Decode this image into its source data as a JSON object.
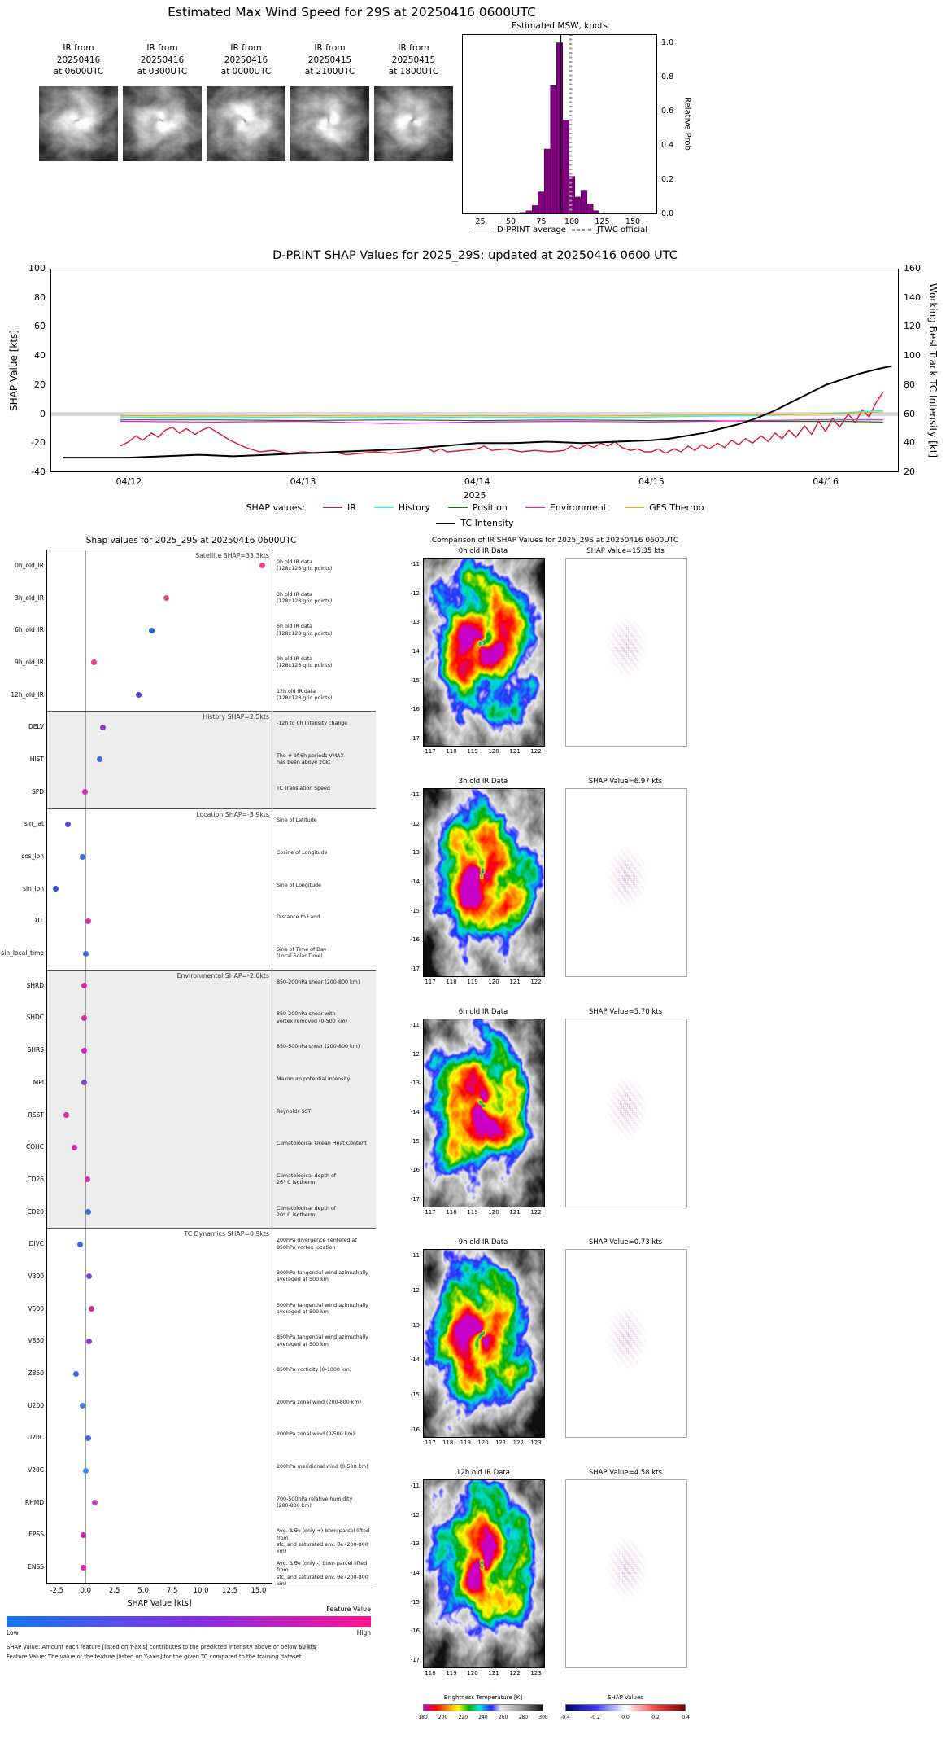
{
  "top": {
    "title": "Estimated Max Wind Speed for 29S at 20250416 0600UTC",
    "thumbs": [
      {
        "label_lines": [
          "IR from",
          "20250416",
          "at 0600UTC"
        ]
      },
      {
        "label_lines": [
          "IR from",
          "20250416",
          "at 0300UTC"
        ]
      },
      {
        "label_lines": [
          "IR from",
          "20250416",
          "at 0000UTC"
        ]
      },
      {
        "label_lines": [
          "IR from",
          "20250415",
          "at 2100UTC"
        ]
      },
      {
        "label_lines": [
          "IR from",
          "20250415",
          "at 1800UTC"
        ]
      }
    ]
  },
  "chart_data": [
    {
      "id": "msw_histogram",
      "type": "bar",
      "title": "Estimated MSW, knots",
      "ylabel": "Relative Prob",
      "xlim": [
        10,
        170
      ],
      "ylim": [
        0,
        1.05
      ],
      "xticks": [
        "25",
        "50",
        "75",
        "100",
        "125",
        "150"
      ],
      "yticks": [
        "0.0",
        "0.2",
        "0.4",
        "0.6",
        "0.8",
        "1.0"
      ],
      "bin_width": 5,
      "bin_centers": [
        60,
        65,
        70,
        75,
        80,
        85,
        90,
        95,
        100,
        105,
        110,
        115,
        120
      ],
      "values": [
        0.01,
        0.02,
        0.05,
        0.13,
        0.38,
        0.75,
        1.0,
        0.55,
        0.22,
        0.1,
        0.14,
        0.06,
        0.02
      ],
      "bar_color": "#800080",
      "dprint_average": 91,
      "jtwc_official": 99,
      "legend": [
        {
          "label": "D-PRINT average",
          "style": "solid",
          "color": "#000000"
        },
        {
          "label": "JTWC official",
          "style": "dotted",
          "color": "#999999"
        }
      ]
    },
    {
      "id": "shap_timeseries",
      "type": "line",
      "title": "D-PRINT SHAP Values for 2025_29S: updated at 20250416 0600 UTC",
      "ylabel_left": "SHAP Value [kts]",
      "ylabel_right": "Working Best Track TC Intensity [kt]",
      "xlabel": "2025",
      "legend_label": "SHAP values:",
      "ylim_left": [
        -40,
        100
      ],
      "ylim_right": [
        20,
        160
      ],
      "xlim_days": [
        11.55,
        16.42
      ],
      "yticks_left": [
        "-40",
        "-20",
        "0",
        "20",
        "40",
        "60",
        "80",
        "100"
      ],
      "yticks_right": [
        "20",
        "40",
        "60",
        "80",
        "100",
        "120",
        "140",
        "160"
      ],
      "xticks": [
        {
          "day": 12,
          "label": "04/12"
        },
        {
          "day": 13,
          "label": "04/13"
        },
        {
          "day": 14,
          "label": "04/14"
        },
        {
          "day": 15,
          "label": "04/15"
        },
        {
          "day": 16,
          "label": "04/16"
        }
      ],
      "series": [
        {
          "name": "IR",
          "color": "crimson",
          "axis": "left",
          "x": [
            11.95,
            12.0,
            12.04,
            12.08,
            12.13,
            12.17,
            12.21,
            12.25,
            12.29,
            12.33,
            12.38,
            12.42,
            12.46,
            12.5,
            12.58,
            12.67,
            12.75,
            12.83,
            12.92,
            13.0,
            13.08,
            13.17,
            13.25,
            13.33,
            13.42,
            13.5,
            13.58,
            13.67,
            13.71,
            13.75,
            13.79,
            13.83,
            13.92,
            14.0,
            14.04,
            14.08,
            14.17,
            14.25,
            14.33,
            14.42,
            14.5,
            14.54,
            14.58,
            14.63,
            14.67,
            14.71,
            14.75,
            14.79,
            14.83,
            14.88,
            14.92,
            14.96,
            15.0,
            15.04,
            15.08,
            15.13,
            15.17,
            15.21,
            15.25,
            15.29,
            15.33,
            15.38,
            15.42,
            15.46,
            15.5,
            15.54,
            15.58,
            15.63,
            15.67,
            15.71,
            15.75,
            15.79,
            15.83,
            15.88,
            15.92,
            15.96,
            16.0,
            16.04,
            16.08,
            16.13,
            16.17,
            16.21,
            16.25,
            16.29,
            16.33
          ],
          "y": [
            -22,
            -19,
            -15,
            -18,
            -13,
            -16,
            -11,
            -9,
            -13,
            -10,
            -14,
            -11,
            -9,
            -12,
            -18,
            -23,
            -26,
            -25,
            -27,
            -26,
            -27,
            -26,
            -28,
            -27,
            -26,
            -27,
            -26,
            -25,
            -23,
            -26,
            -24,
            -26,
            -25,
            -24,
            -22,
            -25,
            -24,
            -26,
            -25,
            -26,
            -25,
            -22,
            -24,
            -21,
            -23,
            -20,
            -22,
            -19,
            -23,
            -25,
            -24,
            -26,
            -26,
            -24,
            -27,
            -24,
            -26,
            -22,
            -25,
            -21,
            -24,
            -20,
            -23,
            -18,
            -21,
            -17,
            -20,
            -15,
            -19,
            -13,
            -17,
            -11,
            -16,
            -8,
            -14,
            -5,
            -12,
            -3,
            -9,
            0,
            -6,
            3,
            -2,
            8,
            15
          ]
        },
        {
          "name": "History",
          "color": "cyan",
          "axis": "left",
          "x": [
            11.95,
            12.5,
            13.0,
            13.5,
            14.0,
            14.5,
            15.0,
            15.3,
            15.6,
            15.9,
            16.1,
            16.33
          ],
          "y": [
            -2,
            -2.5,
            -2,
            -2.5,
            -2,
            -2.5,
            -2,
            -1.5,
            -1,
            0,
            1,
            2.5
          ]
        },
        {
          "name": "Position",
          "color": "green",
          "axis": "left",
          "x": [
            11.95,
            12.5,
            13.0,
            13.5,
            14.0,
            14.5,
            15.0,
            15.3,
            15.6,
            15.9,
            16.1,
            16.33
          ],
          "y": [
            -4,
            -4,
            -4.5,
            -4,
            -4.5,
            -4,
            -4.5,
            -4.5,
            -5,
            -5,
            -5,
            -5.5
          ]
        },
        {
          "name": "Environment",
          "color": "magenta",
          "axis": "left",
          "x": [
            11.95,
            12.5,
            13.0,
            13.5,
            14.0,
            14.5,
            15.0,
            15.3,
            15.6,
            15.9,
            16.1,
            16.33
          ],
          "y": [
            -5,
            -5.5,
            -5,
            -6.5,
            -5.5,
            -5,
            -5.5,
            -5,
            -4.5,
            -4,
            -4,
            -4
          ]
        },
        {
          "name": "GFS Thermo",
          "color": "orange",
          "axis": "left",
          "x": [
            11.95,
            12.5,
            13.0,
            13.5,
            14.0,
            14.5,
            15.0,
            15.3,
            15.6,
            15.9,
            16.1,
            16.33
          ],
          "y": [
            -1,
            -1.5,
            -1,
            -1.5,
            -1,
            -1.5,
            -1,
            -0.5,
            -0.5,
            0,
            0.5,
            1.5
          ]
        },
        {
          "name": "TC Intensity",
          "color": "black",
          "axis": "right",
          "x": [
            11.62,
            11.8,
            12.0,
            12.2,
            12.4,
            12.6,
            12.8,
            13.0,
            13.2,
            13.4,
            13.6,
            13.8,
            14.0,
            14.2,
            14.4,
            14.6,
            14.8,
            15.0,
            15.1,
            15.2,
            15.3,
            15.4,
            15.5,
            15.6,
            15.7,
            15.8,
            15.9,
            16.0,
            16.1,
            16.2,
            16.3,
            16.38
          ],
          "y": [
            30,
            30,
            30,
            31,
            32,
            31,
            32,
            33,
            34,
            35,
            36,
            38,
            40,
            40,
            41,
            40,
            41,
            42,
            43,
            45,
            47,
            50,
            53,
            57,
            62,
            68,
            74,
            80,
            84,
            88,
            91,
            93
          ]
        }
      ]
    },
    {
      "id": "feature_shap_dotplot",
      "type": "scatter",
      "title": "Shap values for 2025_29S at 20250416 0600UTC",
      "xlabel": "SHAP Value [kts]",
      "xlim": [
        -3.4,
        16.2
      ],
      "xticks": [
        "-2.5",
        "0.0",
        "2.5",
        "5.0",
        "7.5",
        "10.0",
        "12.5",
        "15.0"
      ],
      "colorbar": {
        "label": "Feature Value",
        "low": "Low",
        "high": "High"
      },
      "footnote1_prefix": "SHAP Value: Amount each feature [listed on Y-axis] contributes to the predicted intensity above or below ",
      "footnote1_highlight": "60 kts",
      "footnote2": "Feature Value: The value of the feature [listed on Y-axis] for the given TC compared to the training dataset",
      "groups": [
        {
          "header": "Satellite SHAP=33.3kts",
          "shaded": false,
          "features": [
            {
              "name": "0h_old_IR",
              "value": 15.35,
              "color": "#f03a8c",
              "desc": "0h old IR data\n(128x128 grid points)"
            },
            {
              "name": "3h_old_IR",
              "value": 6.97,
              "color": "#e8467c",
              "desc": "3h old IR data\n(128x128 grid points)"
            },
            {
              "name": "6h_old_IR",
              "value": 5.7,
              "color": "#2b5bd7",
              "desc": "6h old IR data\n(128x128 grid points)"
            },
            {
              "name": "9h_old_IR",
              "value": 0.73,
              "color": "#ee3d86",
              "desc": "9h old IR data\n(128x128 grid points)"
            },
            {
              "name": "12h_old_IR",
              "value": 4.58,
              "color": "#4a4ad0",
              "desc": "12h old IR data\n(128x128 grid points)"
            }
          ]
        },
        {
          "header": "History SHAP=2.5kts",
          "shaded": true,
          "features": [
            {
              "name": "DELV",
              "value": 1.5,
              "color": "#8a3bd0",
              "desc": "-12h to 0h Intensity change"
            },
            {
              "name": "HIST",
              "value": 1.2,
              "color": "#3b6bdc",
              "desc": "The # of 6h periods VMAX\nhas been above 20kt"
            },
            {
              "name": "SPD",
              "value": -0.05,
              "color": "#d62ba8",
              "desc": "TC Translation Speed"
            }
          ]
        },
        {
          "header": "Location SHAP=-3.9kts",
          "shaded": false,
          "features": [
            {
              "name": "sin_lat",
              "value": -1.5,
              "color": "#5a4ad0",
              "desc": "Sine of Latitude"
            },
            {
              "name": "cos_lon",
              "value": -0.25,
              "color": "#3b6bdc",
              "desc": "Cosine of Longitude"
            },
            {
              "name": "sin_lon",
              "value": -2.6,
              "color": "#2b5bd7",
              "desc": "Sine of Longitude"
            },
            {
              "name": "DTL",
              "value": 0.2,
              "color": "#d62ba8",
              "desc": "Distance to Land"
            },
            {
              "name": "sin_local_time",
              "value": 0.0,
              "color": "#3b6bdc",
              "desc": "Sine of Time of Day\n(Local Solar Time)"
            }
          ]
        },
        {
          "header": "Environmental SHAP=-2.0kts",
          "shaded": true,
          "features": [
            {
              "name": "SHRD",
              "value": -0.1,
              "color": "#d62ba8",
              "desc": "850-200hPa shear (200-800 km)"
            },
            {
              "name": "SHDC",
              "value": -0.1,
              "color": "#d62ba8",
              "desc": "850-200hPa shear with\nvortex removed (0-500 km)"
            },
            {
              "name": "SHRS",
              "value": -0.1,
              "color": "#c72bbf",
              "desc": "850-500hPa shear (200-800 km)"
            },
            {
              "name": "MPI",
              "value": -0.1,
              "color": "#7a4ad0",
              "desc": "Maximum potential intensity"
            },
            {
              "name": "RSST",
              "value": -1.7,
              "color": "#d62ba8",
              "desc": "Reynolds SST"
            },
            {
              "name": "COHC",
              "value": -1.0,
              "color": "#d62ba8",
              "desc": "Climatological Ocean Heat Content"
            },
            {
              "name": "CD26",
              "value": 0.15,
              "color": "#d62ba8",
              "desc": "Climatological depth of\n26° C isotherm"
            },
            {
              "name": "CD20",
              "value": 0.2,
              "color": "#3b6bdc",
              "desc": "Climatological depth of\n20° C isotherm"
            }
          ]
        },
        {
          "header": "TC Dynamics SHAP=0.9kts",
          "shaded": false,
          "features": [
            {
              "name": "DIVC",
              "value": -0.5,
              "color": "#3b6bdc",
              "desc": "200hPa divergence centered at\n850hPa vortex location"
            },
            {
              "name": "V300",
              "value": 0.3,
              "color": "#7a4ad0",
              "desc": "300hPa tangential wind azimuthally\naveraged at 500 km"
            },
            {
              "name": "V500",
              "value": 0.5,
              "color": "#d62b8c",
              "desc": "500hPa tangential wind azimuthally\naveraged at 500 km"
            },
            {
              "name": "V850",
              "value": 0.3,
              "color": "#8a3bd0",
              "desc": "850hPa tangential wind azimuthally\naveraged at 500 km"
            },
            {
              "name": "Z850",
              "value": -0.8,
              "color": "#3b6bdc",
              "desc": "850hPa vorticity (0-1000 km)"
            },
            {
              "name": "U200",
              "value": -0.25,
              "color": "#4a7ae0",
              "desc": "200hPa zonal wind (200-800 km)"
            },
            {
              "name": "U20C",
              "value": 0.2,
              "color": "#3b6bdc",
              "desc": "200hPa zonal wind (0-500 km)"
            },
            {
              "name": "V20C",
              "value": 0.05,
              "color": "#3b8bdc",
              "desc": "200hPa meridional wind (0-500 km)"
            },
            {
              "name": "RHMD",
              "value": 0.8,
              "color": "#c04ab8",
              "desc": "700-500hPa relative humidity\n(200-800 km)"
            },
            {
              "name": "EPSS",
              "value": -0.2,
              "color": "#cc2baf",
              "desc": "Avg. Δ θe (only +) btwn parcel lifted from\nsfc. and saturated env. θe (200-800 km)"
            },
            {
              "name": "ENSS",
              "value": -0.2,
              "color": "#d62ba8",
              "desc": "Avg. Δ θe (only -) btwn parcel lifted from\nsfc. and saturated env. θe (200-800 km)"
            }
          ]
        }
      ]
    },
    {
      "id": "ir_shap_comparison",
      "type": "heatmap",
      "title": "Comparison of IR SHAP Values for 2025_29S at 20250416 0600UTC",
      "rows": [
        {
          "ir_title": "0h old IR Data",
          "shap_title": "SHAP Value=15.35 kts",
          "xticks": [
            117,
            118,
            119,
            120,
            121,
            122
          ],
          "yticks": [
            -11,
            -12,
            -13,
            -14,
            -15,
            -16,
            -17
          ]
        },
        {
          "ir_title": "3h old IR Data",
          "shap_title": "SHAP Value=6.97 kts",
          "xticks": [
            117,
            118,
            119,
            120,
            121,
            122
          ],
          "yticks": [
            -11,
            -12,
            -13,
            -14,
            -15,
            -16,
            -17
          ]
        },
        {
          "ir_title": "6h old IR Data",
          "shap_title": "SHAP Value=5.70 kts",
          "xticks": [
            117,
            118,
            119,
            120,
            121,
            122
          ],
          "yticks": [
            -11,
            -12,
            -13,
            -14,
            -15,
            -16,
            -17
          ]
        },
        {
          "ir_title": "9h old IR Data",
          "shap_title": "SHAP Value=0.73 kts",
          "xticks": [
            117,
            118,
            119,
            120,
            121,
            122,
            123
          ],
          "yticks": [
            -11,
            -12,
            -13,
            -14,
            -15,
            -16
          ]
        },
        {
          "ir_title": "12h old IR Data",
          "shap_title": "SHAP Value=4.58 kts",
          "xticks": [
            118,
            119,
            120,
            121,
            122,
            123
          ],
          "yticks": [
            -11,
            -12,
            -13,
            -14,
            -15,
            -16,
            -17
          ]
        }
      ],
      "bt_colorbar": {
        "label": "Brightness Temperature [K]",
        "ticks": [
          "180",
          "200",
          "220",
          "240",
          "260",
          "280",
          "300"
        ]
      },
      "shap_colorbar": {
        "label": "SHAP Values",
        "ticks": [
          "-0.4",
          "-0.2",
          "0.0",
          "0.2",
          "0.4"
        ]
      }
    }
  ]
}
